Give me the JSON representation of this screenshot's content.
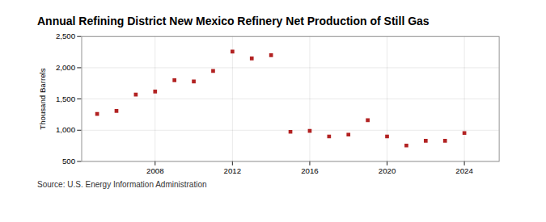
{
  "chart_data": {
    "type": "scatter",
    "title": "Annual Refining District New Mexico Refinery Net Production of Still Gas",
    "ylabel": "Thousand Barrels",
    "source": "Source: U.S. Energy Information Administration",
    "x": [
      2005,
      2006,
      2007,
      2008,
      2009,
      2010,
      2011,
      2012,
      2013,
      2014,
      2015,
      2016,
      2017,
      2018,
      2019,
      2020,
      2021,
      2022,
      2023,
      2024
    ],
    "values": [
      1260,
      1310,
      1570,
      1620,
      1800,
      1780,
      1950,
      2260,
      2150,
      2200,
      975,
      990,
      900,
      930,
      1160,
      900,
      755,
      830,
      830,
      955
    ],
    "color": "#b22222",
    "marker": "square",
    "xlim": [
      2004.2,
      2025.8
    ],
    "xticks": [
      2008,
      2012,
      2016,
      2020,
      2024
    ],
    "ylim": [
      500,
      2500
    ],
    "yticks": [
      500,
      {
        "value": 1000,
        "label": "1,000"
      },
      {
        "value": 1500,
        "label": "1,500"
      },
      {
        "value": 2000,
        "label": "2,000"
      },
      {
        "value": 2500,
        "label": "2,500"
      }
    ],
    "grid": true
  }
}
